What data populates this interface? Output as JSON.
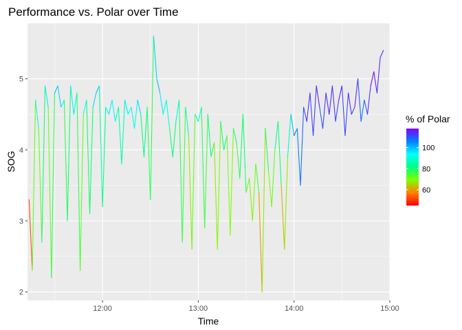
{
  "chart_data": {
    "type": "line",
    "title": "Performance vs. Polar over Time",
    "xlabel": "Time",
    "ylabel": "SOG",
    "x_ticks": [
      "12:00",
      "13:00",
      "14:00",
      "15:00"
    ],
    "y_ticks": [
      2,
      3,
      4,
      5
    ],
    "xlim": [
      "11:13",
      "15:00"
    ],
    "ylim": [
      1.88,
      5.78
    ],
    "grid": true,
    "background": "#ebebeb",
    "legend": {
      "title": "% of Polar",
      "position": "right",
      "ticks": [
        60,
        80,
        100
      ],
      "range": [
        45,
        118
      ],
      "colors": [
        "#ff0000",
        "#ff8000",
        "#80ff00",
        "#00ff80",
        "#00ffff",
        "#0080ff",
        "#8000ff"
      ]
    },
    "series": [
      {
        "x": [
          "11:14",
          "11:16",
          "11:18",
          "11:20",
          "11:22",
          "11:24",
          "11:26",
          "11:28",
          "11:30",
          "11:32",
          "11:34",
          "11:36",
          "11:38",
          "11:40",
          "11:42",
          "11:44",
          "11:46",
          "11:48",
          "11:50",
          "11:52",
          "11:54",
          "11:56",
          "11:58",
          "12:00",
          "12:02",
          "12:04",
          "12:06",
          "12:08",
          "12:10",
          "12:12",
          "12:14",
          "12:16",
          "12:18",
          "12:20",
          "12:22",
          "12:24",
          "12:26",
          "12:28",
          "12:30",
          "12:32",
          "12:34",
          "12:36",
          "12:38",
          "12:40",
          "12:42",
          "12:44",
          "12:46",
          "12:48",
          "12:50",
          "12:52",
          "12:54",
          "12:56",
          "12:58",
          "13:00",
          "13:02",
          "13:04",
          "13:06",
          "13:08",
          "13:10",
          "13:12",
          "13:14",
          "13:16",
          "13:18",
          "13:20",
          "13:22",
          "13:24",
          "13:26",
          "13:28",
          "13:30",
          "13:32",
          "13:34",
          "13:36",
          "13:38",
          "13:40",
          "13:42",
          "13:44",
          "13:46",
          "13:48",
          "13:50",
          "13:52",
          "13:54",
          "13:56",
          "13:58",
          "14:00",
          "14:02",
          "14:04",
          "14:06",
          "14:08",
          "14:10",
          "14:12",
          "14:14",
          "14:16",
          "14:18",
          "14:20",
          "14:22",
          "14:24",
          "14:26",
          "14:28",
          "14:30",
          "14:32",
          "14:34",
          "14:36",
          "14:38",
          "14:40",
          "14:42",
          "14:44",
          "14:46",
          "14:48",
          "14:50",
          "14:52",
          "14:54",
          "14:56"
        ],
        "y": [
          3.3,
          2.3,
          4.7,
          4.3,
          2.7,
          4.9,
          4.6,
          2.2,
          4.8,
          4.9,
          4.6,
          4.7,
          3.0,
          4.9,
          4.5,
          4.8,
          2.3,
          4.5,
          4.7,
          3.1,
          4.6,
          4.8,
          4.9,
          3.2,
          4.6,
          4.5,
          4.7,
          4.4,
          4.6,
          3.8,
          4.7,
          4.5,
          4.6,
          4.3,
          4.7,
          4.5,
          3.9,
          4.6,
          3.3,
          5.6,
          5.0,
          4.8,
          4.5,
          4.7,
          4.3,
          3.9,
          4.4,
          4.7,
          2.7,
          4.6,
          4.2,
          2.6,
          4.5,
          4.4,
          4.6,
          2.9,
          4.5,
          3.9,
          4.1,
          2.6,
          4.4,
          4.0,
          4.2,
          2.8,
          4.3,
          4.1,
          3.6,
          4.5,
          3.4,
          3.6,
          3.0,
          3.8,
          3.4,
          2.0,
          4.3,
          3.7,
          3.2,
          4.0,
          4.4,
          3.5,
          2.6,
          3.9,
          4.5,
          4.2,
          4.3,
          3.5,
          4.6,
          4.4,
          4.8,
          4.2,
          4.9,
          4.6,
          4.3,
          4.8,
          4.5,
          4.9,
          4.4,
          4.7,
          4.9,
          4.2,
          4.8,
          4.5,
          4.6,
          5.0,
          4.4,
          4.7,
          4.5,
          4.9,
          5.1,
          4.8,
          5.3,
          5.4
        ],
        "pct": [
          55,
          50,
          95,
          85,
          60,
          100,
          90,
          55,
          100,
          100,
          95,
          95,
          60,
          100,
          90,
          100,
          55,
          90,
          95,
          65,
          95,
          100,
          100,
          70,
          95,
          90,
          100,
          85,
          95,
          75,
          100,
          90,
          95,
          85,
          100,
          95,
          70,
          95,
          60,
          95,
          100,
          100,
          90,
          95,
          85,
          75,
          90,
          100,
          55,
          95,
          80,
          55,
          90,
          85,
          95,
          60,
          90,
          75,
          80,
          55,
          85,
          80,
          85,
          55,
          85,
          80,
          70,
          90,
          70,
          75,
          60,
          80,
          70,
          50,
          85,
          75,
          65,
          80,
          90,
          70,
          55,
          80,
          95,
          105,
          110,
          100,
          115,
          110,
          118,
          105,
          118,
          112,
          105,
          118,
          110,
          118,
          108,
          115,
          118,
          105,
          118,
          110,
          112,
          118,
          100,
          112,
          108,
          118,
          118,
          112,
          115,
          112
        ]
      }
    ]
  }
}
